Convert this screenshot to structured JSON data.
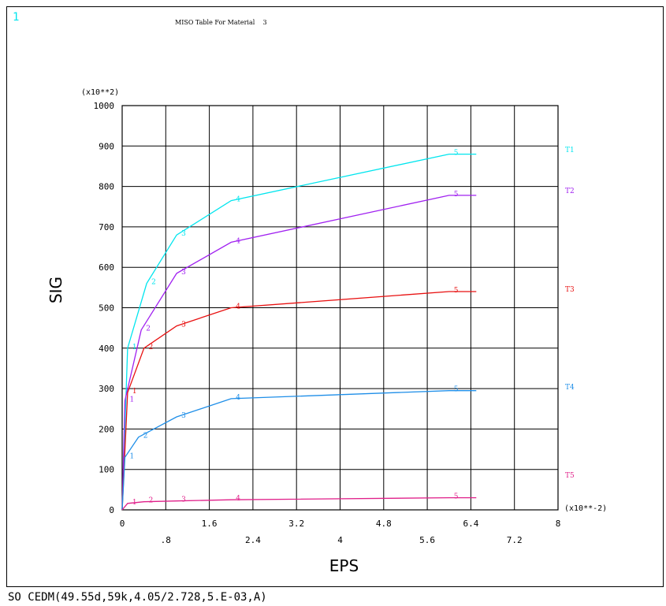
{
  "window_number": "1",
  "title": "MISO Table For Material    3",
  "command_line": "SO CEDM(49.55d,59k,4.05/2.728,5.E-03,A)",
  "chart_data": {
    "type": "line",
    "xlabel": "EPS",
    "ylabel": "SIG",
    "x_multiplier": "(x10**-2)",
    "y_multiplier": "(x10**2)",
    "xlim": [
      0,
      8
    ],
    "ylim": [
      0,
      1000
    ],
    "grid": true,
    "x_ticks_upper": [
      "0",
      "1.6",
      "3.2",
      "4.8",
      "6.4",
      "8"
    ],
    "x_ticks_upper_values": [
      0,
      1.6,
      3.2,
      4.8,
      6.4,
      8
    ],
    "x_ticks_lower": [
      ".8",
      "2.4",
      "4",
      "5.6",
      "7.2"
    ],
    "x_ticks_lower_values": [
      0.8,
      2.4,
      4,
      5.6,
      7.2
    ],
    "y_ticks": [
      "0",
      "100",
      "200",
      "300",
      "400",
      "500",
      "600",
      "700",
      "800",
      "900",
      "1000"
    ],
    "y_ticks_values": [
      0,
      100,
      200,
      300,
      400,
      500,
      600,
      700,
      800,
      900,
      1000
    ],
    "series": [
      {
        "name": "T1",
        "color": "#00e5ee",
        "points": [
          [
            0,
            0
          ],
          [
            0.1,
            400
          ],
          [
            0.45,
            560
          ],
          [
            1.0,
            680
          ],
          [
            2.0,
            765
          ],
          [
            6.0,
            880
          ],
          [
            6.5,
            880
          ]
        ],
        "point_labels": [
          "1",
          "2",
          "3",
          "4",
          "5"
        ]
      },
      {
        "name": "T2",
        "color": "#a020f0",
        "points": [
          [
            0,
            0
          ],
          [
            0.05,
            270
          ],
          [
            0.35,
            445
          ],
          [
            1.0,
            585
          ],
          [
            2.0,
            662
          ],
          [
            6.0,
            778
          ],
          [
            6.5,
            778
          ]
        ],
        "point_labels": [
          "1",
          "2",
          "3",
          "4",
          "5"
        ]
      },
      {
        "name": "T3",
        "color": "#e81010",
        "points": [
          [
            0,
            0
          ],
          [
            0.1,
            290
          ],
          [
            0.4,
            400
          ],
          [
            1.0,
            455
          ],
          [
            2.0,
            500
          ],
          [
            6.0,
            540
          ],
          [
            6.5,
            540
          ]
        ],
        "point_labels": [
          "1",
          "2",
          "3",
          "4",
          "5"
        ]
      },
      {
        "name": "T4",
        "color": "#1e8ee8",
        "points": [
          [
            0,
            0
          ],
          [
            0.05,
            130
          ],
          [
            0.3,
            180
          ],
          [
            1.0,
            230
          ],
          [
            2.0,
            275
          ],
          [
            6.0,
            295
          ],
          [
            6.5,
            295
          ]
        ],
        "point_labels": [
          "1",
          "2",
          "3",
          "4",
          "5"
        ]
      },
      {
        "name": "T5",
        "color": "#e0208a",
        "points": [
          [
            0,
            0
          ],
          [
            0.1,
            16
          ],
          [
            0.4,
            20
          ],
          [
            1.0,
            22
          ],
          [
            2.0,
            25
          ],
          [
            6.0,
            30
          ],
          [
            6.5,
            30
          ]
        ],
        "point_labels": [
          "1",
          "2",
          "3",
          "4",
          "5"
        ]
      }
    ]
  }
}
